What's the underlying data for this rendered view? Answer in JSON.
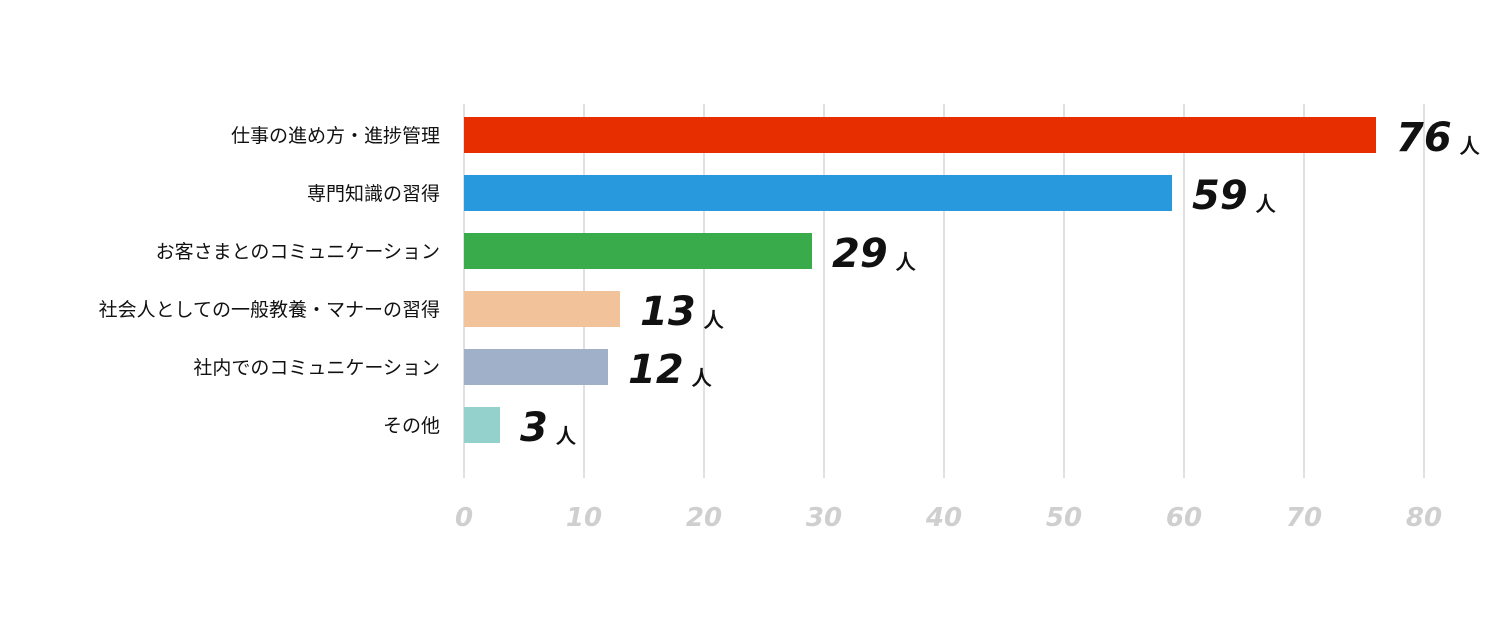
{
  "chart_data": {
    "type": "bar",
    "orientation": "horizontal",
    "categories": [
      "仕事の進め方・進捗管理",
      "専門知識の習得",
      "お客さまとのコミュニケーション",
      "社会人としての一般教養・マナーの習得",
      "社内でのコミュニケーション",
      "その他"
    ],
    "values": [
      76,
      59,
      29,
      13,
      12,
      3
    ],
    "unit": "人",
    "colors": [
      "#e62e00",
      "#2899dd",
      "#3aab4a",
      "#f2c29b",
      "#9fb0c8",
      "#94d1cc"
    ],
    "xlim": [
      0,
      80
    ],
    "xticks": [
      0,
      10,
      20,
      30,
      40,
      50,
      60,
      70,
      80
    ],
    "grid": true,
    "legend": "none"
  }
}
